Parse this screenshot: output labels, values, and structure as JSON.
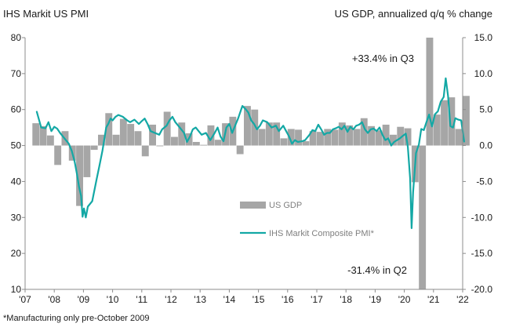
{
  "chart_data": {
    "type": "bar+line",
    "left_title": "IHS Markit US PMI",
    "right_title": "US GDP, annualized q/q % change",
    "footnote": "*Manufacturing only pre-October 2009",
    "left_axis": {
      "min": 10,
      "max": 80,
      "ticks": [
        "10",
        "20",
        "30",
        "40",
        "50",
        "60",
        "70",
        "80"
      ]
    },
    "right_axis": {
      "min": -20,
      "max": 15,
      "ticks": [
        "15.0",
        "10.0",
        "5.0",
        "0.0",
        "-5.0",
        "-10.0",
        "-15.0",
        "-20.0"
      ]
    },
    "x_ticks": [
      "'07",
      "'08",
      "'09",
      "'10",
      "'11",
      "'12",
      "'13",
      "'14",
      "'15",
      "'16",
      "'17",
      "'18",
      "'19",
      "'20",
      "'21",
      "'22"
    ],
    "x_range": [
      2007.0,
      2022.0
    ],
    "legend": {
      "bar_label": "US GDP",
      "line_label": "IHS Markit Composite PMI*"
    },
    "annotations": {
      "q3": "+33.4% in Q3",
      "q2": "-31.4% in Q2"
    },
    "colors": {
      "bar": "#a6a6a6",
      "line": "#13a8a5",
      "axis": "#8c8c8c",
      "text": "#1a1a1a"
    },
    "gdp_series": {
      "name": "US GDP",
      "start": 2007.25,
      "quarter_length": 0.25,
      "values": [
        3.1,
        2.7,
        1.4,
        -2.7,
        2.0,
        -2.1,
        -8.4,
        -4.4,
        -0.6,
        1.5,
        4.5,
        1.5,
        3.7,
        3.0,
        2.0,
        -1.5,
        2.9,
        -0.1,
        4.7,
        1.2,
        3.2,
        1.7,
        0.5,
        0.1,
        2.8,
        0.8,
        3.1,
        4.0,
        -1.2,
        5.5,
        5.0,
        2.3,
        3.2,
        3.2,
        1.0,
        2.3,
        2.2,
        0.6,
        2.0,
        1.9,
        2.3,
        2.2,
        3.2,
        2.8,
        2.3,
        3.8,
        2.7,
        2.1,
        2.9,
        1.5,
        2.6,
        2.4,
        -5.1,
        -31.4,
        33.4,
        4.3,
        6.3,
        6.7,
        2.3,
        6.9
      ]
    },
    "pmi_series": {
      "name": "IHS Markit Composite PMI*",
      "points": [
        [
          2007.4,
          59.4
        ],
        [
          2007.55,
          55.0
        ],
        [
          2007.7,
          54.8
        ],
        [
          2007.8,
          56.5
        ],
        [
          2007.9,
          54.0
        ],
        [
          2008.0,
          55.2
        ],
        [
          2008.1,
          54.7
        ],
        [
          2008.2,
          53.5
        ],
        [
          2008.35,
          52.0
        ],
        [
          2008.5,
          50.5
        ],
        [
          2008.6,
          48.5
        ],
        [
          2008.7,
          45.5
        ],
        [
          2008.78,
          42.0
        ],
        [
          2008.85,
          38.5
        ],
        [
          2008.92,
          36.0
        ],
        [
          2008.97,
          30.2
        ],
        [
          2009.02,
          32.5
        ],
        [
          2009.08,
          30.0
        ],
        [
          2009.15,
          33.0
        ],
        [
          2009.3,
          34.5
        ],
        [
          2009.45,
          40.5
        ],
        [
          2009.55,
          44.5
        ],
        [
          2009.65,
          48.5
        ],
        [
          2009.72,
          52.0
        ],
        [
          2009.78,
          55.0
        ],
        [
          2009.85,
          56.0
        ],
        [
          2009.93,
          57.5
        ],
        [
          2010.0,
          57.0
        ],
        [
          2010.1,
          58.0
        ],
        [
          2010.2,
          58.5
        ],
        [
          2010.35,
          58.0
        ],
        [
          2010.5,
          57.0
        ],
        [
          2010.6,
          56.5
        ],
        [
          2010.75,
          57.2
        ],
        [
          2010.9,
          56.0
        ],
        [
          2011.0,
          56.8
        ],
        [
          2011.1,
          57.5
        ],
        [
          2011.2,
          56.0
        ],
        [
          2011.3,
          54.0
        ],
        [
          2011.45,
          53.5
        ],
        [
          2011.6,
          53.0
        ],
        [
          2011.7,
          54.5
        ],
        [
          2011.85,
          55.5
        ],
        [
          2011.95,
          57.0
        ],
        [
          2012.05,
          58.0
        ],
        [
          2012.15,
          56.5
        ],
        [
          2012.3,
          55.0
        ],
        [
          2012.45,
          53.5
        ],
        [
          2012.55,
          51.0
        ],
        [
          2012.65,
          52.5
        ],
        [
          2012.75,
          54.5
        ],
        [
          2012.85,
          55.0
        ],
        [
          2012.95,
          54.0
        ],
        [
          2013.05,
          53.0
        ],
        [
          2013.2,
          53.5
        ],
        [
          2013.35,
          51.5
        ],
        [
          2013.5,
          53.5
        ],
        [
          2013.6,
          55.0
        ],
        [
          2013.7,
          52.5
        ],
        [
          2013.8,
          51.2
        ],
        [
          2013.9,
          55.0
        ],
        [
          2014.0,
          56.0
        ],
        [
          2014.1,
          53.5
        ],
        [
          2014.2,
          55.5
        ],
        [
          2014.3,
          57.5
        ],
        [
          2014.45,
          61.0
        ],
        [
          2014.55,
          60.2
        ],
        [
          2014.65,
          59.2
        ],
        [
          2014.75,
          57.0
        ],
        [
          2014.85,
          56.0
        ],
        [
          2014.95,
          54.5
        ],
        [
          2015.05,
          55.5
        ],
        [
          2015.15,
          57.0
        ],
        [
          2015.3,
          56.5
        ],
        [
          2015.45,
          55.0
        ],
        [
          2015.6,
          55.5
        ],
        [
          2015.7,
          54.0
        ],
        [
          2015.85,
          55.5
        ],
        [
          2015.95,
          54.0
        ],
        [
          2016.05,
          52.5
        ],
        [
          2016.15,
          50.5
        ],
        [
          2016.25,
          51.5
        ],
        [
          2016.35,
          51.0
        ],
        [
          2016.5,
          51.2
        ],
        [
          2016.6,
          51.5
        ],
        [
          2016.75,
          53.0
        ],
        [
          2016.85,
          54.3
        ],
        [
          2016.95,
          54.0
        ],
        [
          2017.05,
          55.8
        ],
        [
          2017.15,
          54.5
        ],
        [
          2017.25,
          53.0
        ],
        [
          2017.35,
          53.5
        ],
        [
          2017.45,
          53.5
        ],
        [
          2017.55,
          54.5
        ],
        [
          2017.65,
          54.8
        ],
        [
          2017.75,
          55.2
        ],
        [
          2017.85,
          54.5
        ],
        [
          2017.95,
          55.5
        ],
        [
          2018.05,
          53.8
        ],
        [
          2018.15,
          55.2
        ],
        [
          2018.25,
          54.5
        ],
        [
          2018.35,
          55.5
        ],
        [
          2018.45,
          55.8
        ],
        [
          2018.55,
          56.5
        ],
        [
          2018.65,
          54.5
        ],
        [
          2018.75,
          53.5
        ],
        [
          2018.85,
          54.5
        ],
        [
          2018.95,
          54.7
        ],
        [
          2019.05,
          54.0
        ],
        [
          2019.15,
          55.0
        ],
        [
          2019.25,
          53.0
        ],
        [
          2019.35,
          51.5
        ],
        [
          2019.45,
          52.0
        ],
        [
          2019.55,
          50.0
        ],
        [
          2019.65,
          51.0
        ],
        [
          2019.75,
          51.5
        ],
        [
          2019.85,
          52.0
        ],
        [
          2019.95,
          52.7
        ],
        [
          2020.05,
          53.3
        ],
        [
          2020.12,
          49.6
        ],
        [
          2020.2,
          40.9
        ],
        [
          2020.25,
          27.0
        ],
        [
          2020.3,
          37.0
        ],
        [
          2020.4,
          47.9
        ],
        [
          2020.5,
          50.3
        ],
        [
          2020.58,
          54.6
        ],
        [
          2020.67,
          54.3
        ],
        [
          2020.75,
          56.3
        ],
        [
          2020.85,
          58.6
        ],
        [
          2020.95,
          55.3
        ],
        [
          2021.05,
          58.7
        ],
        [
          2021.15,
          59.5
        ],
        [
          2021.25,
          62.2
        ],
        [
          2021.35,
          63.5
        ],
        [
          2021.42,
          68.7
        ],
        [
          2021.5,
          63.7
        ],
        [
          2021.58,
          55.4
        ],
        [
          2021.67,
          55.0
        ],
        [
          2021.75,
          57.6
        ],
        [
          2021.85,
          57.2
        ],
        [
          2021.95,
          57.0
        ],
        [
          2022.05,
          51.1
        ]
      ]
    }
  }
}
